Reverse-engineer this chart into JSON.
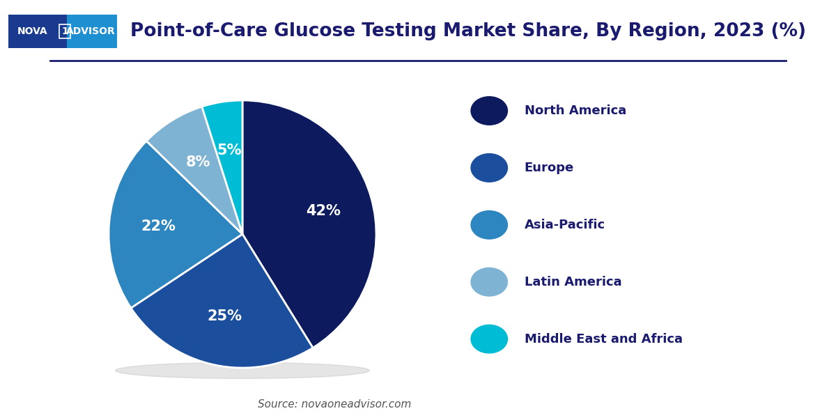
{
  "title": "Point-of-Care Glucose Testing Market Share, By Region, 2023 (%)",
  "title_fontsize": 19,
  "title_color": "#1a1a6e",
  "source_text": "Source: novaoneadvisor.com",
  "labels": [
    "North America",
    "Europe",
    "Asia-Pacific",
    "Latin America",
    "Middle East and Africa"
  ],
  "values": [
    42,
    25,
    22,
    8,
    5
  ],
  "colors": [
    "#0d1b5e",
    "#1b4f9e",
    "#2e86c1",
    "#7fb3d3",
    "#00bcd4"
  ],
  "pct_labels": [
    "42%",
    "25%",
    "22%",
    "8%",
    "5%"
  ],
  "legend_labels": [
    "North America",
    "Europe",
    "Asia-Pacific",
    "Latin America",
    "Middle East and Africa"
  ],
  "legend_colors": [
    "#0d1b5e",
    "#1b4f9e",
    "#2e86c1",
    "#7fb3d3",
    "#00bcd4"
  ],
  "background_color": "#ffffff",
  "text_color": "#1a1a6e",
  "label_fontsize": 15,
  "legend_fontsize": 13,
  "startangle": 90,
  "pct_color": "#ffffff",
  "separator_color": "#1a1a6e",
  "logo_text_left": "NOVA",
  "logo_text_1": "1",
  "logo_text_right": "ADVISOR",
  "logo_bg_left": "#1a3a8f",
  "logo_bg_right": "#1e8fd0",
  "shadow_color": "#aaaaaa"
}
